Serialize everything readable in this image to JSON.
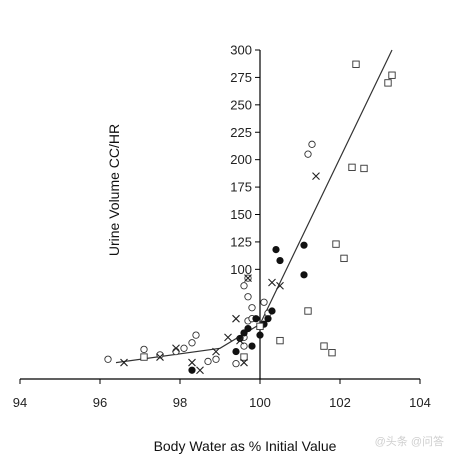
{
  "chart_data": {
    "type": "scatter",
    "title": "",
    "xlabel": "Body Water as % Initial Value",
    "ylabel": "Urine Volume  CC/HR",
    "xlim": [
      94,
      104
    ],
    "ylim": [
      0,
      300
    ],
    "xticks": [
      "94",
      "96",
      "98",
      "100",
      "102",
      "104"
    ],
    "yticks": [
      "100",
      "125",
      "150",
      "175",
      "200",
      "225",
      "250",
      "275",
      "300"
    ],
    "grid": false,
    "legend": "none",
    "series": [
      {
        "marker": "open-circle",
        "points": [
          [
            96.2,
            18
          ],
          [
            97.1,
            27
          ],
          [
            97.5,
            22
          ],
          [
            97.9,
            25
          ],
          [
            98.1,
            28
          ],
          [
            98.3,
            33
          ],
          [
            98.4,
            40
          ],
          [
            98.7,
            16
          ],
          [
            98.9,
            18
          ],
          [
            99.4,
            14
          ],
          [
            99.6,
            30
          ],
          [
            99.6,
            38
          ],
          [
            99.7,
            53
          ],
          [
            99.8,
            55
          ],
          [
            99.8,
            65
          ],
          [
            99.7,
            75
          ],
          [
            99.6,
            85
          ],
          [
            99.7,
            92
          ],
          [
            100.1,
            70
          ],
          [
            100.2,
            60
          ],
          [
            101.2,
            205
          ],
          [
            101.3,
            214
          ]
        ]
      },
      {
        "marker": "filled-circle",
        "points": [
          [
            98.3,
            8
          ],
          [
            99.4,
            25
          ],
          [
            99.5,
            37
          ],
          [
            99.6,
            42
          ],
          [
            99.7,
            46
          ],
          [
            99.8,
            30
          ],
          [
            99.9,
            55
          ],
          [
            100.0,
            40
          ],
          [
            100.1,
            50
          ],
          [
            100.2,
            55
          ],
          [
            100.3,
            62
          ],
          [
            100.4,
            118
          ],
          [
            100.5,
            108
          ],
          [
            101.1,
            122
          ],
          [
            101.1,
            95
          ]
        ]
      },
      {
        "marker": "open-square",
        "points": [
          [
            97.1,
            20
          ],
          [
            99.6,
            20
          ],
          [
            100.0,
            48
          ],
          [
            100.5,
            35
          ],
          [
            101.2,
            62
          ],
          [
            101.6,
            30
          ],
          [
            101.8,
            24
          ],
          [
            101.9,
            123
          ],
          [
            102.1,
            110
          ],
          [
            102.3,
            193
          ],
          [
            102.4,
            287
          ],
          [
            102.6,
            192
          ],
          [
            103.2,
            270
          ],
          [
            103.3,
            277
          ]
        ]
      },
      {
        "marker": "x",
        "points": [
          [
            96.6,
            15
          ],
          [
            97.5,
            20
          ],
          [
            97.9,
            28
          ],
          [
            98.3,
            15
          ],
          [
            98.5,
            8
          ],
          [
            98.9,
            25
          ],
          [
            99.2,
            38
          ],
          [
            99.4,
            55
          ],
          [
            99.5,
            35
          ],
          [
            99.6,
            15
          ],
          [
            99.7,
            92
          ],
          [
            100.3,
            88
          ],
          [
            100.5,
            85
          ],
          [
            101.4,
            185
          ]
        ]
      }
    ],
    "fit_lines": [
      {
        "points": [
          [
            96.4,
            15
          ],
          [
            99.0,
            28
          ],
          [
            100.0,
            50
          ],
          [
            103.3,
            300
          ]
        ]
      }
    ]
  },
  "watermark": "@头条 @问答"
}
